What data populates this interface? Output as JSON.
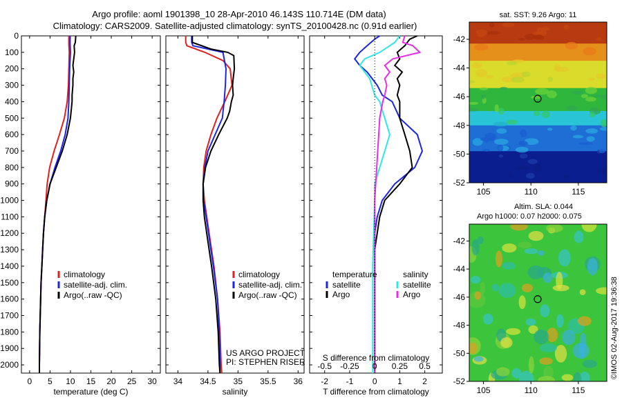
{
  "header": {
    "line1": "Argo profile: aoml 1901398_10 28-Apr-2010 46.143S 110.714E (DM data)",
    "line2": "Climatology: CARS2009. Satellite-adjusted climatology: synTS_20100428.nc (0.91d earlier)"
  },
  "credits": {
    "project": "US ARGO PROJECT",
    "pi": "PI: STEPHEN RISER",
    "stamp": "©IMOS 02-Aug-2017 19:36:38"
  },
  "colors": {
    "climatology": "#e0201c",
    "satellite_adj": "#1c24e6",
    "argo": "#000000",
    "t_diff": "#1c24e6",
    "s_diff": "#2ee8e8",
    "s_argo": "#e62ee6"
  },
  "chart_data": [
    {
      "type": "line",
      "id": "temperature-profile",
      "xlabel": "temperature (deg C)",
      "xlim": [
        -2,
        32
      ],
      "xticks": [
        0,
        5,
        10,
        15,
        20,
        25,
        30
      ],
      "ylim": [
        0,
        2050
      ],
      "yticks": [
        0,
        100,
        200,
        300,
        400,
        500,
        600,
        700,
        800,
        900,
        1000,
        1100,
        1200,
        1300,
        1400,
        1500,
        1600,
        1700,
        1800,
        1900,
        2000
      ],
      "legend": [
        "climatology",
        "satellite-adj. clim.",
        "Argo(..raw -QC)"
      ],
      "series": [
        {
          "name": "climatology",
          "color": "#e0201c",
          "depth": [
            0,
            50,
            100,
            200,
            300,
            400,
            500,
            600,
            700,
            800,
            900,
            1000,
            1100,
            1200,
            1300,
            1400,
            1500,
            1600,
            1800,
            2000,
            2050
          ],
          "values": [
            9.6,
            9.6,
            9.7,
            9.6,
            9.5,
            9.2,
            8.5,
            7.3,
            6.0,
            4.9,
            4.3,
            4.0,
            3.7,
            3.4,
            3.2,
            3.0,
            2.8,
            2.7,
            2.5,
            2.4,
            2.4
          ]
        },
        {
          "name": "satellite-adj. clim.",
          "color": "#1c24e6",
          "depth": [
            0,
            50,
            100,
            200,
            300,
            400,
            500,
            600,
            700,
            800,
            900,
            1000,
            1100,
            1200,
            1300,
            1400,
            1500,
            1600,
            1800,
            2000,
            2050
          ],
          "values": [
            9.9,
            9.9,
            10.0,
            9.8,
            9.7,
            9.6,
            9.4,
            8.7,
            7.6,
            6.2,
            5.0,
            4.2,
            3.7,
            3.4,
            3.2,
            3.0,
            2.8,
            2.7,
            2.5,
            2.4,
            2.4
          ]
        },
        {
          "name": "Argo(..raw -QC)",
          "color": "#000000",
          "depth": [
            0,
            40,
            60,
            100,
            140,
            180,
            220,
            260,
            300,
            360,
            400,
            500,
            600,
            700,
            800,
            900,
            1000,
            1100,
            1200,
            1300,
            1400,
            1500,
            1600,
            1800,
            2000,
            2050
          ],
          "values": [
            11.3,
            11.2,
            10.9,
            11.0,
            10.8,
            10.6,
            10.8,
            10.6,
            10.6,
            10.4,
            10.4,
            10.0,
            9.2,
            8.0,
            6.5,
            5.0,
            4.2,
            3.7,
            3.4,
            3.2,
            3.0,
            2.8,
            2.7,
            2.5,
            2.4,
            2.4
          ]
        }
      ]
    },
    {
      "type": "line",
      "id": "salinity-profile",
      "xlabel": "salinity",
      "xlim": [
        33.8,
        36.1
      ],
      "xticks": [
        34,
        34.5,
        35,
        35.5,
        36
      ],
      "ylim": [
        0,
        2050
      ],
      "legend": [
        "climatology",
        "satellite-adj. clim.",
        "Argo(..raw -QC)"
      ],
      "series": [
        {
          "name": "climatology",
          "color": "#e0201c",
          "depth": [
            0,
            40,
            60,
            100,
            150,
            200,
            300,
            400,
            500,
            600,
            700,
            800,
            900,
            1000,
            1200,
            1400,
            1600,
            1800,
            2000,
            2050
          ],
          "values": [
            34.13,
            34.13,
            34.15,
            34.45,
            34.75,
            34.87,
            34.9,
            34.78,
            34.65,
            34.55,
            34.47,
            34.43,
            34.42,
            34.44,
            34.52,
            34.6,
            34.66,
            34.7,
            34.72,
            34.73
          ]
        },
        {
          "name": "satellite-adj. clim.",
          "color": "#1c24e6",
          "depth": [
            0,
            40,
            60,
            100,
            200,
            300,
            400,
            500,
            600,
            700,
            800,
            900,
            1000,
            1200,
            1400,
            1600,
            1800,
            2000,
            2050
          ],
          "values": [
            34.23,
            34.23,
            34.25,
            34.75,
            34.8,
            34.79,
            34.77,
            34.74,
            34.62,
            34.5,
            34.45,
            34.42,
            34.43,
            34.51,
            34.59,
            34.66,
            34.69,
            34.7,
            34.7
          ]
        },
        {
          "name": "Argo(..raw -QC)",
          "color": "#000000",
          "depth": [
            0,
            40,
            80,
            100,
            120,
            200,
            260,
            300,
            360,
            400,
            460,
            500,
            600,
            700,
            800,
            900,
            1000,
            1100,
            1200,
            1400,
            1600,
            1800,
            2000,
            2050
          ],
          "values": [
            34.24,
            34.24,
            34.55,
            34.83,
            34.93,
            34.94,
            34.92,
            34.91,
            34.92,
            34.89,
            34.86,
            34.82,
            34.68,
            34.55,
            34.46,
            34.42,
            34.42,
            34.44,
            34.48,
            34.56,
            34.63,
            34.67,
            34.69,
            34.7
          ]
        }
      ]
    },
    {
      "type": "line",
      "id": "difference-profile",
      "xlabel": "T difference from climatology",
      "xlabel_top": "S difference from climatology",
      "xlim": [
        -2.6,
        2.7
      ],
      "xticks": [
        -2,
        -1,
        0,
        1,
        2
      ],
      "xticks_s": [
        "-0.5",
        "-0.25",
        "0",
        "0.25",
        "0.5"
      ],
      "ylim": [
        0,
        2050
      ],
      "legend": {
        "left_heading": "temperature",
        "right_heading": "salinity",
        "items": [
          "satellite",
          "Argo",
          "satellite",
          "Argo"
        ]
      },
      "series": [
        {
          "name": "temperature satellite",
          "color": "#1c24e6",
          "depth": [
            0,
            20,
            60,
            100,
            140,
            180,
            220,
            260,
            300,
            360,
            400,
            500,
            600,
            700,
            800,
            900,
            1000,
            1100,
            1200,
            1300,
            1400,
            1600,
            1800,
            2000,
            2050
          ],
          "values": [
            0.2,
            0.0,
            -0.3,
            -0.6,
            -0.8,
            -0.6,
            -0.3,
            -0.1,
            0.1,
            0.3,
            0.7,
            1.0,
            1.7,
            1.9,
            1.6,
            0.8,
            0.3,
            0.1,
            0.0,
            0.0,
            0.0,
            0.0,
            0.0,
            0.0,
            0.0
          ]
        },
        {
          "name": "temperature Argo",
          "color": "#000000",
          "depth": [
            0,
            20,
            60,
            100,
            140,
            180,
            220,
            260,
            300,
            360,
            400,
            500,
            600,
            700,
            800,
            900,
            1000,
            1100,
            1200,
            1300,
            1400,
            1500,
            1600,
            1800,
            2000,
            2050
          ],
          "values": [
            1.7,
            1.4,
            1.2,
            0.9,
            1.0,
            0.8,
            1.1,
            0.9,
            1.0,
            0.9,
            1.0,
            1.0,
            1.2,
            1.4,
            1.5,
            1.0,
            0.4,
            0.2,
            0.1,
            0.0,
            0.0,
            0.0,
            0.0,
            0.0,
            0.0,
            0.0
          ]
        },
        {
          "name": "salinity satellite",
          "color": "#2ee8e8",
          "depth": [
            0,
            40,
            60,
            100,
            140,
            180,
            220,
            260,
            300,
            360,
            400,
            500,
            600,
            700,
            800,
            900,
            1000,
            1200,
            1400,
            1600,
            1800,
            2000,
            2050
          ],
          "values": [
            0.25,
            0.2,
            0.15,
            0.05,
            -0.1,
            -0.15,
            -0.1,
            -0.05,
            -0.03,
            0.0,
            0.05,
            0.1,
            0.15,
            0.1,
            0.05,
            0.0,
            0.0,
            -0.01,
            -0.02,
            -0.02,
            -0.02,
            -0.02,
            -0.02
          ]
        },
        {
          "name": "salinity Argo",
          "color": "#e62ee6",
          "depth": [
            0,
            40,
            60,
            100,
            140,
            180,
            220,
            260,
            300,
            360,
            400,
            500,
            600,
            700,
            800,
            900,
            1000,
            1200,
            1400,
            1600,
            1800,
            2000,
            2050
          ],
          "values": [
            0.3,
            0.28,
            0.38,
            0.45,
            0.18,
            0.1,
            0.15,
            0.1,
            0.12,
            0.1,
            0.08,
            0.05,
            0.04,
            0.03,
            0.02,
            0.01,
            0.0,
            0.0,
            0.0,
            0.0,
            0.0,
            0.0,
            0.0
          ]
        }
      ]
    },
    {
      "type": "heatmap",
      "id": "sst-map",
      "title": "sat. SST: 9.26  Argo: 11",
      "xlim": [
        103.5,
        118
      ],
      "xticks": [
        105,
        110,
        115
      ],
      "ylim": [
        -52,
        -40.8
      ],
      "yticks": [
        -52,
        -50,
        -48,
        -46,
        -44,
        -42
      ],
      "marker": {
        "lon": 110.714,
        "lat": -46.143
      },
      "bands": [
        {
          "lat_from": -40.8,
          "lat_to": -42.3,
          "color": "#b83a10"
        },
        {
          "lat_from": -42.3,
          "lat_to": -43.5,
          "color": "#e6901c"
        },
        {
          "lat_from": -43.5,
          "lat_to": -45.4,
          "color": "#d9dc2a"
        },
        {
          "lat_from": -45.4,
          "lat_to": -47.0,
          "color": "#2fb63c"
        },
        {
          "lat_from": -47.0,
          "lat_to": -48.0,
          "color": "#29c4d6"
        },
        {
          "lat_from": -48.0,
          "lat_to": -49.8,
          "color": "#1e6ed6"
        },
        {
          "lat_from": -49.8,
          "lat_to": -52.0,
          "color": "#0b1e8f"
        }
      ]
    },
    {
      "type": "heatmap",
      "id": "sla-map",
      "title_line1": "Altim. SLA: 0.044",
      "title_line2": "Argo h1000: 0.07 h2000: 0.075",
      "xlim": [
        103.5,
        118
      ],
      "xticks": [
        105,
        110,
        115
      ],
      "ylim": [
        -52,
        -40.8
      ],
      "yticks": [
        -52,
        -50,
        -48,
        -46,
        -44,
        -42
      ],
      "marker": {
        "lon": 110.714,
        "lat": -46.143
      },
      "base_color": "#3cc43c"
    }
  ]
}
